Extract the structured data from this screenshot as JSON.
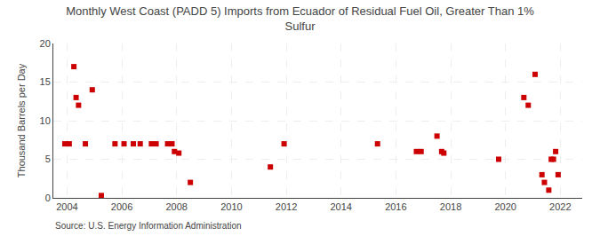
{
  "chart_data": {
    "type": "scatter",
    "title": "Monthly West Coast (PADD 5) Imports from Ecuador of Residual Fuel Oil, Greater Than 1%\nSulfur",
    "y_label": "Thousand Barrels per Day",
    "annotations": [
      "Source: U.S. Energy Information Administration"
    ],
    "x": [
      2003.92,
      2004.08,
      2004.25,
      2004.33,
      2004.42,
      2004.67,
      2004.92,
      2005.25,
      2005.75,
      2006.08,
      2006.42,
      2006.67,
      2007.08,
      2007.25,
      2007.67,
      2007.83,
      2007.92,
      2008.08,
      2008.5,
      2011.42,
      2011.92,
      2015.33,
      2016.75,
      2016.92,
      2017.5,
      2017.67,
      2017.75,
      2019.75,
      2020.67,
      2020.83,
      2021.08,
      2021.33,
      2021.42,
      2021.58,
      2021.67,
      2021.75,
      2021.83,
      2021.92
    ],
    "values": [
      7.0,
      7.0,
      17.0,
      13.0,
      12.0,
      7.0,
      14.0,
      0.3,
      7.0,
      7.0,
      7.0,
      7.0,
      7.0,
      7.0,
      7.0,
      7.0,
      6.0,
      5.8,
      2.0,
      4.0,
      7.0,
      7.0,
      6.0,
      6.0,
      8.0,
      6.0,
      5.8,
      5.0,
      13.0,
      12.0,
      16.0,
      3.0,
      2.0,
      1.0,
      5.0,
      5.0,
      6.0,
      3.0
    ],
    "color": "#cc0000",
    "marker": "square",
    "xlim": [
      2003.5,
      2022.8
    ],
    "xticks": [
      2004,
      2006,
      2008,
      2010,
      2012,
      2014,
      2016,
      2018,
      2020,
      2022
    ],
    "ylim": [
      0,
      20
    ],
    "yticks": [
      0,
      5,
      10,
      15,
      20
    ],
    "grid": true
  }
}
